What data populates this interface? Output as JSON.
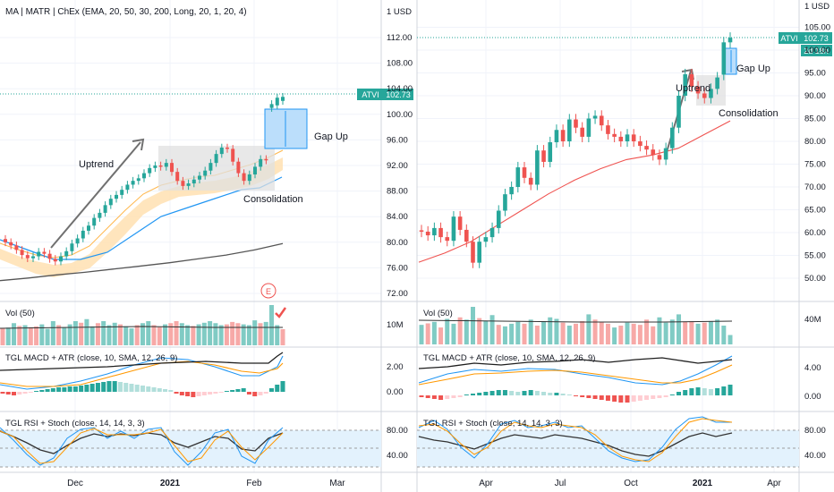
{
  "symbol": "ATVI",
  "currency": "1 USD",
  "last_price": "102.73",
  "countdown": "2d 18h",
  "left_title": "MA | MATR | ChEx (EMA, 20, 50, 30, 200, Long, 20, 1, 20, 4)",
  "earnings_marker": "E",
  "annotations_left": {
    "uptrend": "Uptrend",
    "gap_up": "Gap Up",
    "consolidation": "Consolidation"
  },
  "annotations_right": {
    "uptrend": "Uptrend",
    "gap_up": "Gap Up",
    "consolidation": "Consolidation"
  },
  "indicator_labels": {
    "vol_left": "Vol (50)",
    "vol_right": "Vol (50)",
    "macd_left": "TGL MACD + ATR (close, 10, SMA, 12, 26, 9)",
    "macd_right": "TGL MACD + ATR (close, 10, SMA, 12, 26, 9)",
    "rsi_left": "TGL RSI + Stoch (close, 14, 14, 3, 3)",
    "rsi_right": "TGL RSI + Stoch (close, 14, 14, 3, 3)"
  },
  "colors": {
    "up": "#26a69a",
    "down": "#ef5350",
    "price_line": "#26a69a",
    "gap_box": "#bbdefb",
    "gap_box_border": "#2196f3",
    "consol_box": "#e0e0e0",
    "ema_blue": "#2196f3",
    "ema_red": "#ef5350",
    "sma_dark": "#555555",
    "band_orange": "#ffe0b2",
    "rsi_band": "#e3f2fd"
  },
  "chart_data": [
    {
      "type": "line",
      "panel": "left-price",
      "xlabels": [
        "Dec",
        "2021",
        "Feb",
        "Mar"
      ],
      "ylim": [
        70,
        116
      ],
      "yticks": [
        "72.00",
        "76.00",
        "80.00",
        "84.00",
        "88.00",
        "92.00",
        "96.00",
        "100.00",
        "104.00",
        "108.00",
        "112.00"
      ],
      "candles_close": [
        80.0,
        79.5,
        78.8,
        78.0,
        77.5,
        77.8,
        78.5,
        78.2,
        77.4,
        77.0,
        77.8,
        78.6,
        79.8,
        80.6,
        81.8,
        82.6,
        83.8,
        84.6,
        85.8,
        86.8,
        87.4,
        88.2,
        89.0,
        89.6,
        90.0,
        90.8,
        91.6,
        92.0,
        91.8,
        92.4,
        91.0,
        89.6,
        88.8,
        89.2,
        89.8,
        90.4,
        91.2,
        92.4,
        93.8,
        94.8,
        94.6,
        92.6,
        90.8,
        89.6,
        90.6,
        91.8,
        93.0,
        92.8,
        101.6,
        102.6,
        102.73
      ],
      "ema_blue": [
        79.0,
        80.0,
        81.0,
        83.0,
        85.5,
        87.0,
        88.0,
        88.5,
        89.0,
        90.8
      ],
      "sma_200": [
        74.0,
        74.4,
        74.9,
        75.3,
        75.8,
        76.3,
        76.8,
        77.4,
        78.0,
        78.8,
        79.8
      ],
      "gap_up": [
        93.6,
        100.9
      ],
      "consolidation": [
        87.8,
        94.6
      ]
    },
    {
      "type": "line",
      "panel": "right-price",
      "xlabels": [
        "Apr",
        "Jul",
        "Oct",
        "2021",
        "Apr"
      ],
      "ylim": [
        44,
        108
      ],
      "yticks": [
        "50.00",
        "55.00",
        "60.00",
        "65.00",
        "70.00",
        "75.00",
        "80.00",
        "85.00",
        "90.00",
        "95.00",
        "100.00",
        "105.00"
      ],
      "closes": [
        60.2,
        59.4,
        61.0,
        59.0,
        58.2,
        63.5,
        60.6,
        58.0,
        53.4,
        58.0,
        59.0,
        61.0,
        64.8,
        68.4,
        70.0,
        74.3,
        72.0,
        70.5,
        78.0,
        75.5,
        79.8,
        82.5,
        80.0,
        84.8,
        83.0,
        81.0,
        85.0,
        85.6,
        83.5,
        81.6,
        81.0,
        80.0,
        81.5,
        80.0,
        79.0,
        78.2,
        77.0,
        76.0,
        78.5,
        83.0,
        90.0,
        94.7,
        92.0,
        90.5,
        89.5,
        91.5,
        94.0,
        101.7,
        102.7
      ],
      "sma": [
        53.5,
        55.5,
        58.0,
        61.5,
        65.0,
        68.5,
        71.5,
        74.0,
        76.0,
        77.0,
        78.5,
        81.5,
        84.5
      ],
      "gap_up": [
        94.7,
        99.9
      ],
      "consolidation": [
        88.5,
        95.0
      ]
    },
    {
      "type": "bar",
      "panel": "left-volume",
      "ytick": "10M",
      "values": [
        0.42,
        0.44,
        0.55,
        0.48,
        0.5,
        0.45,
        0.47,
        0.52,
        0.41,
        0.6,
        0.5,
        0.45,
        0.52,
        0.6,
        0.56,
        0.65,
        0.47,
        0.55,
        0.6,
        0.5,
        0.56,
        0.52,
        0.47,
        0.42,
        0.5,
        0.55,
        0.6,
        0.5,
        0.45,
        0.52,
        0.55,
        0.6,
        0.55,
        0.5,
        0.48,
        0.52,
        0.56,
        0.6,
        0.55,
        0.5,
        0.52,
        0.58,
        0.55,
        0.52,
        0.5,
        0.62,
        0.55,
        0.58,
        1.0,
        0.5,
        0.4
      ]
    },
    {
      "type": "bar",
      "panel": "right-volume",
      "ytick": "40M",
      "values": [
        0.52,
        0.56,
        0.6,
        0.45,
        0.68,
        0.55,
        0.72,
        0.66,
        1.0,
        0.7,
        0.62,
        0.78,
        0.52,
        0.48,
        0.55,
        0.6,
        0.55,
        0.66,
        0.5,
        0.62,
        0.72,
        0.68,
        0.58,
        0.5,
        0.55,
        0.62,
        0.8,
        0.66,
        0.6,
        0.55,
        0.45,
        0.5,
        0.58,
        0.55,
        0.52,
        0.66,
        0.48,
        0.72,
        0.58,
        0.66,
        0.8,
        0.6,
        0.62,
        0.55,
        0.58,
        0.62,
        0.66,
        0.5,
        0.25
      ]
    },
    {
      "type": "line",
      "panel": "left-macd",
      "yticks": [
        "0.00",
        "2.00"
      ]
    },
    {
      "type": "line",
      "panel": "right-macd",
      "yticks": [
        "0.00",
        "4.00"
      ]
    },
    {
      "type": "line",
      "panel": "left-rsi",
      "yticks": [
        "40.00",
        "80.00"
      ]
    },
    {
      "type": "line",
      "panel": "right-rsi",
      "yticks": [
        "40.00",
        "80.00"
      ]
    }
  ]
}
